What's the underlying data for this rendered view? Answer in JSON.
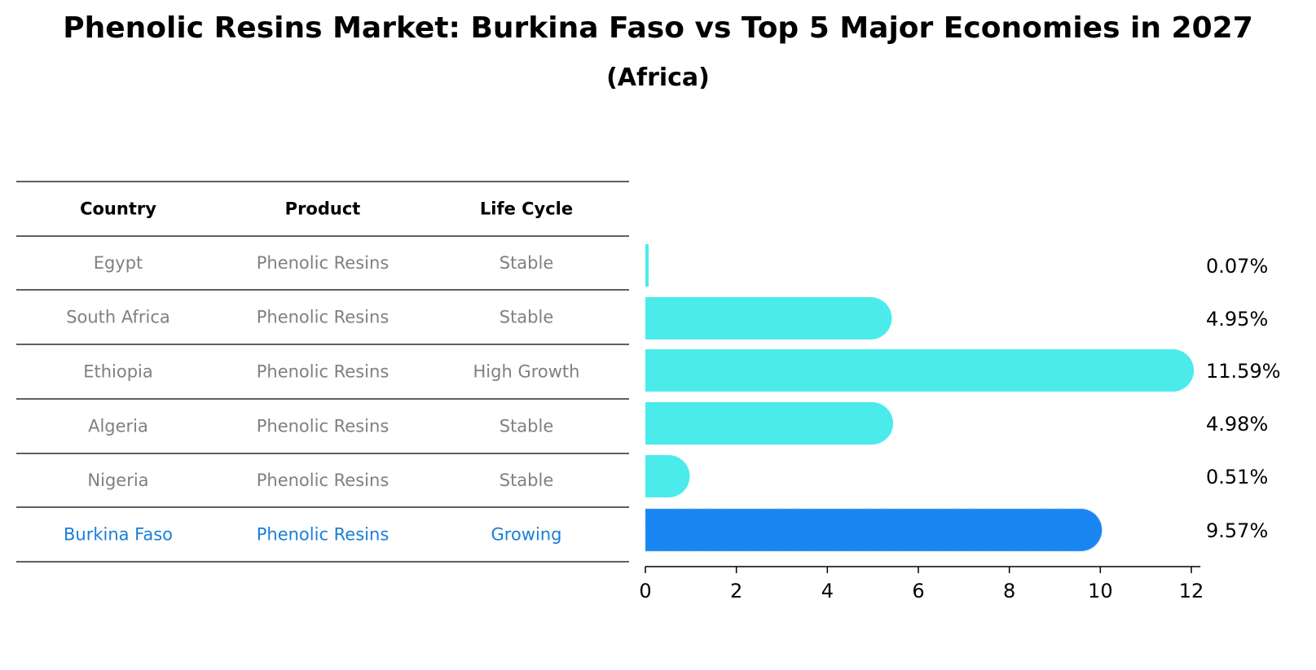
{
  "chart_data": {
    "type": "bar",
    "orientation": "horizontal",
    "title": "Phenolic Resins Market: Burkina Faso vs Top 5 Major Economies in 2027",
    "subtitle": "(Africa)",
    "table_headers": [
      "Country",
      "Product",
      "Life Cycle"
    ],
    "rows": [
      {
        "country": "Egypt",
        "product": "Phenolic Resins",
        "life_cycle": "Stable",
        "value": 0.07,
        "label": "0.07%",
        "highlight": false
      },
      {
        "country": "South Africa",
        "product": "Phenolic Resins",
        "life_cycle": "Stable",
        "value": 4.95,
        "label": "4.95%",
        "highlight": false
      },
      {
        "country": "Ethiopia",
        "product": "Phenolic Resins",
        "life_cycle": "High Growth",
        "value": 11.59,
        "label": "11.59%",
        "highlight": false
      },
      {
        "country": "Algeria",
        "product": "Phenolic Resins",
        "life_cycle": "Stable",
        "value": 4.98,
        "label": "4.98%",
        "highlight": false
      },
      {
        "country": "Nigeria",
        "product": "Phenolic Resins",
        "life_cycle": "Stable",
        "value": 0.51,
        "label": "0.51%",
        "highlight": false
      },
      {
        "country": "Burkina Faso",
        "product": "Phenolic Resins",
        "life_cycle": "Growing",
        "value": 9.57,
        "label": "9.57%",
        "highlight": true
      }
    ],
    "xlim": [
      0,
      12.2
    ],
    "xticks": [
      0,
      2,
      4,
      6,
      8,
      10,
      12
    ],
    "colors": {
      "bar": "#4BEBEB",
      "highlight_bar": "#1A86F2",
      "text_muted": "#808080",
      "text_highlight": "#1A7FD6"
    }
  }
}
